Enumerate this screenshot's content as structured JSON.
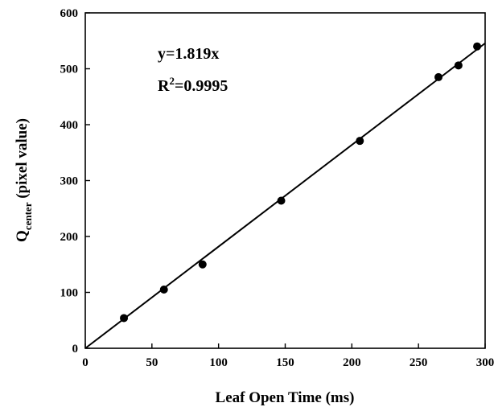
{
  "chart_data": {
    "type": "scatter",
    "xlabel": "Leaf Open Time (ms)",
    "ylabel_main": "Q",
    "ylabel_sub": "center",
    "ylabel_rest": " (pixel value)",
    "xlim": [
      0,
      300
    ],
    "ylim": [
      0,
      600
    ],
    "x_ticks": [
      0,
      50,
      100,
      150,
      200,
      250,
      300
    ],
    "y_ticks": [
      0,
      100,
      200,
      300,
      400,
      500,
      600
    ],
    "grid": false,
    "legend": "none",
    "points": [
      {
        "x": 29,
        "y": 54
      },
      {
        "x": 59,
        "y": 105
      },
      {
        "x": 88,
        "y": 150
      },
      {
        "x": 147,
        "y": 264
      },
      {
        "x": 206,
        "y": 371
      },
      {
        "x": 265,
        "y": 485
      },
      {
        "x": 280,
        "y": 506
      },
      {
        "x": 294,
        "y": 540
      }
    ],
    "fit_line": {
      "slope": 1.819,
      "intercept": 0
    },
    "annotations": {
      "equation": "y=1.819x",
      "r2_prefix": "R",
      "r2_sup": "2",
      "r2_value": "=0.9995"
    },
    "colors": {
      "marker": "#000000",
      "line": "#000000"
    }
  }
}
